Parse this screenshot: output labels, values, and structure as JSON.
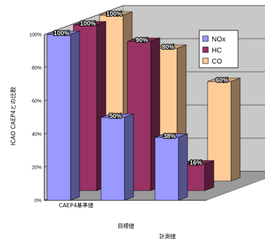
{
  "chart_data": {
    "type": "bar",
    "subtype": "3d-clustered-depth",
    "ylabel": "ICAO CAEP4との比較",
    "ylim": [
      0,
      100
    ],
    "yticks": [
      "0%",
      "20%",
      "40%",
      "60%",
      "80%",
      "100%"
    ],
    "categories": [
      "CAEP4基準値",
      "目標値",
      "計測値"
    ],
    "series": [
      {
        "name": "NOx",
        "color": "#9999ff",
        "values": [
          100,
          50,
          38
        ],
        "labels": [
          "100%",
          "50%",
          "38%"
        ]
      },
      {
        "name": "HC",
        "color": "#993366",
        "values": [
          100,
          90,
          16
        ],
        "labels": [
          "100%",
          "90%",
          "16%"
        ]
      },
      {
        "name": "CO",
        "color": "#ffcc99",
        "values": [
          100,
          80,
          60
        ],
        "labels": [
          "100%",
          "80%",
          "60%"
        ]
      }
    ],
    "legend": "top-right",
    "grid": true
  }
}
